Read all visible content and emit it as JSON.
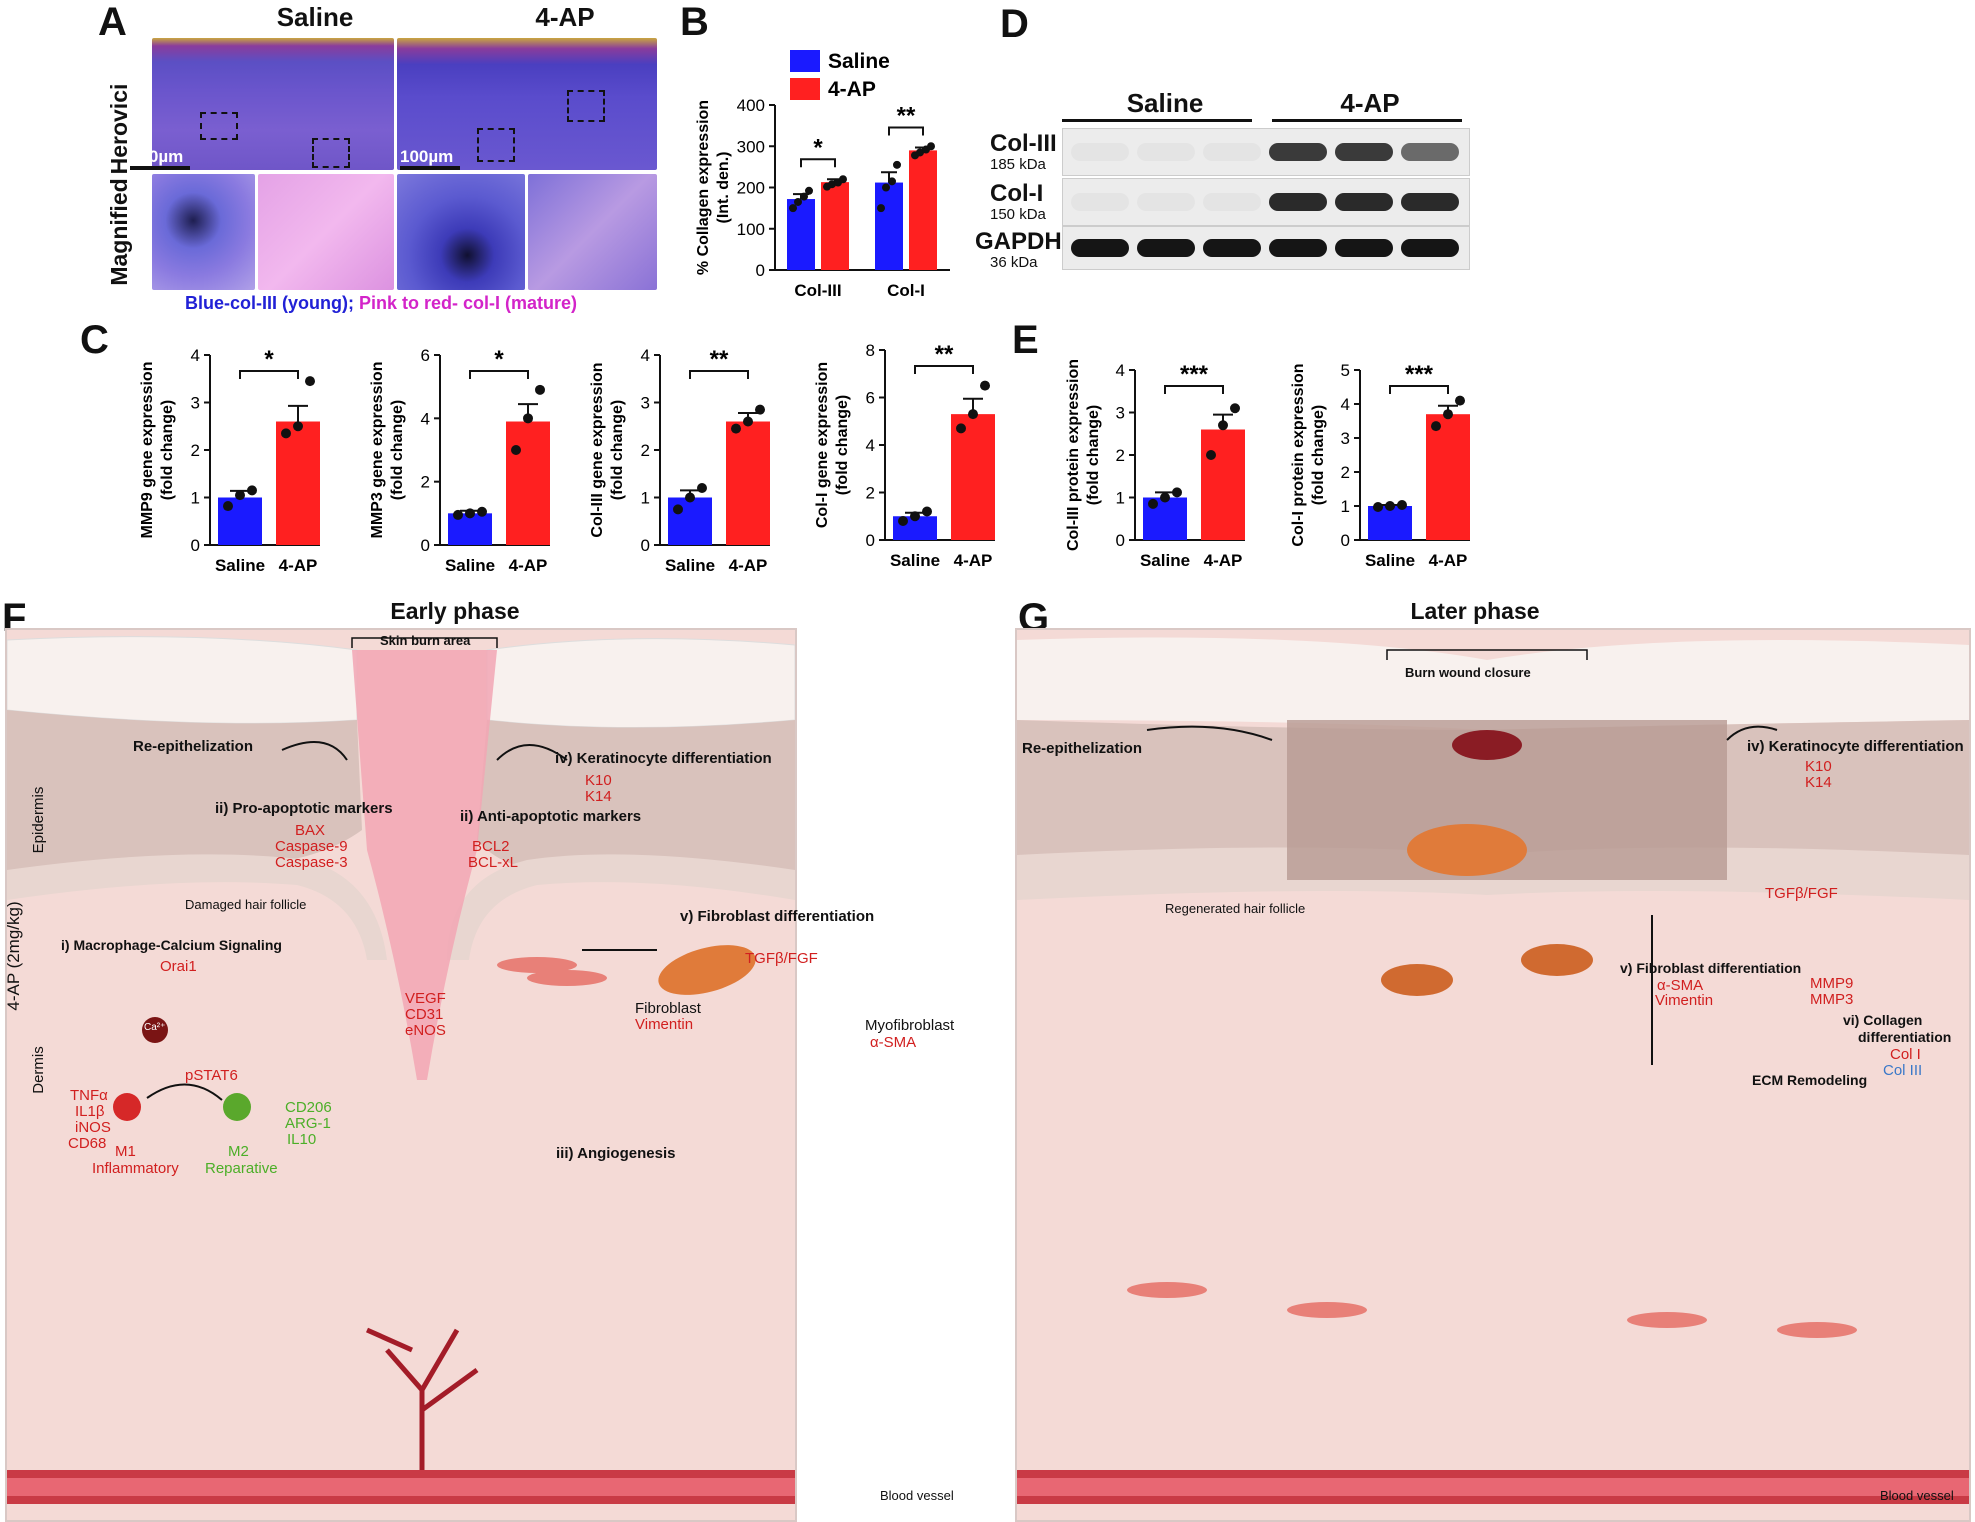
{
  "panels": {
    "A": "A",
    "B": "B",
    "C": "C",
    "D": "D",
    "E": "E",
    "F": "F",
    "G": "G"
  },
  "panel_a": {
    "col_saline": "Saline",
    "col_4ap": "4-AP",
    "row_herovici": "Herovici",
    "row_magnified": "Magnified",
    "scale_bar": "100µm",
    "caption_blue": "Blue-col-III (young);",
    "caption_pink": "Pink to red- col-I (mature)",
    "colors": {
      "blue": "#2121d6",
      "pink": "#d324c9"
    }
  },
  "panel_d": {
    "group_saline": "Saline",
    "group_4ap": "4-AP",
    "bands": [
      {
        "name": "Col-III",
        "kda": "185 kDa"
      },
      {
        "name": "Col-I",
        "kda": "150 kDa"
      },
      {
        "name": "GAPDH",
        "kda": "36 kDa"
      }
    ]
  },
  "colors": {
    "saline": "#1a1aff",
    "fourap": "#ff2020"
  },
  "chart_data": [
    {
      "id": "B",
      "type": "bar",
      "ylabel": "% Collagen expression\n(Int. den.)",
      "ylim": [
        0,
        400
      ],
      "yticks": [
        0,
        100,
        200,
        300,
        400
      ],
      "categories": [
        "Col-III",
        "Col-I"
      ],
      "legend": [
        "Saline",
        "4-AP"
      ],
      "series": [
        {
          "name": "Saline",
          "values": [
            172,
            212
          ],
          "err": [
            12,
            25
          ],
          "points": [
            [
              150,
              165,
              178,
              192
            ],
            [
              150,
              200,
              215,
              255
            ]
          ]
        },
        {
          "name": "4-AP",
          "values": [
            213,
            290
          ],
          "err": [
            7,
            7
          ],
          "points": [
            [
              202,
              208,
              212,
              220
            ],
            [
              278,
              285,
              292,
              300
            ]
          ]
        }
      ],
      "sig": [
        "*",
        "**"
      ]
    },
    {
      "id": "C1",
      "type": "bar",
      "ylabel": "MMP9 gene expression\n(fold change)",
      "ylim": [
        0,
        4
      ],
      "yticks": [
        0,
        1,
        2,
        3,
        4
      ],
      "categories": [
        "Saline",
        "4-AP"
      ],
      "values": [
        1.0,
        2.6
      ],
      "err": [
        0.14,
        0.33
      ],
      "points": [
        [
          0.82,
          1.05,
          1.15
        ],
        [
          2.35,
          2.5,
          3.45
        ]
      ],
      "sig": "*"
    },
    {
      "id": "C2",
      "type": "bar",
      "ylabel": "MMP3 gene expression\n(fold change)",
      "ylim": [
        0,
        6
      ],
      "yticks": [
        0,
        2,
        4,
        6
      ],
      "categories": [
        "Saline",
        "4-AP"
      ],
      "values": [
        1.0,
        3.9
      ],
      "err": [
        0.08,
        0.55
      ],
      "points": [
        [
          0.95,
          1.0,
          1.05
        ],
        [
          3.0,
          4.0,
          4.9
        ]
      ],
      "sig": "*"
    },
    {
      "id": "C3",
      "type": "bar",
      "ylabel": "Col-III gene expression\n(fold change)",
      "ylim": [
        0,
        4
      ],
      "yticks": [
        0,
        1,
        2,
        3,
        4
      ],
      "categories": [
        "Saline",
        "4-AP"
      ],
      "values": [
        1.0,
        2.6
      ],
      "err": [
        0.15,
        0.18
      ],
      "points": [
        [
          0.75,
          1.0,
          1.2
        ],
        [
          2.45,
          2.6,
          2.85
        ]
      ],
      "sig": "**"
    },
    {
      "id": "C4",
      "type": "bar",
      "ylabel": "Col-I gene expression\n(fold change)",
      "ylim": [
        0,
        8
      ],
      "yticks": [
        0,
        2,
        4,
        6,
        8
      ],
      "categories": [
        "Saline",
        "4-AP"
      ],
      "values": [
        1.0,
        5.3
      ],
      "err": [
        0.15,
        0.65
      ],
      "points": [
        [
          0.8,
          1.0,
          1.2
        ],
        [
          4.7,
          5.3,
          6.5
        ]
      ],
      "sig": "**"
    },
    {
      "id": "E1",
      "type": "bar",
      "ylabel": "Col-III protein expression\n(fold change)",
      "ylim": [
        0,
        4
      ],
      "yticks": [
        0,
        1,
        2,
        3,
        4
      ],
      "categories": [
        "Saline",
        "4-AP"
      ],
      "values": [
        1.0,
        2.6
      ],
      "err": [
        0.12,
        0.35
      ],
      "points": [
        [
          0.85,
          1.0,
          1.12
        ],
        [
          2.0,
          2.7,
          3.1
        ]
      ],
      "sig": "***"
    },
    {
      "id": "E2",
      "type": "bar",
      "ylabel": "Col-I protein expression\n(fold change)",
      "ylim": [
        0,
        5
      ],
      "yticks": [
        0,
        1,
        2,
        3,
        4,
        5
      ],
      "categories": [
        "Saline",
        "4-AP"
      ],
      "values": [
        1.0,
        3.7
      ],
      "err": [
        0.03,
        0.25
      ],
      "points": [
        [
          0.97,
          1.0,
          1.03
        ],
        [
          3.35,
          3.7,
          4.1
        ]
      ],
      "sig": "***"
    }
  ],
  "panel_f": {
    "title": "Early phase",
    "burn_area": "Skin burn area",
    "side_drug": "4-AP (2mg/kg)",
    "side_epidermis": "Epidermis",
    "side_dermis": "Dermis",
    "reepi": "Re-epithelization",
    "kera": "iv) Keratinocyte differentiation",
    "k10": "K10",
    "k14": "K14",
    "pro_apo": "ii) Pro-apoptotic markers",
    "bax": "BAX",
    "casp9": "Caspase-9",
    "casp3": "Caspase-3",
    "anti_apo": "ii) Anti-apoptotic markers",
    "bcl2": "BCL2",
    "bclxl": "BCL-xL",
    "damaged": "Damaged hair follicle",
    "macro": "i) Macrophage-Calcium Signaling",
    "orai": "Orai1",
    "ca": "Ca²⁺",
    "pstat": "pSTAT6",
    "tnf": "TNFα",
    "il1b": "IL1β",
    "inos": "iNOS",
    "cd68": "CD68",
    "m1": "M1",
    "m1sub": "Inflammatory",
    "m2": "M2",
    "m2sub": "Reparative",
    "cd206": "CD206",
    "arg1": "ARG-1",
    "il10": "IL10",
    "vegf": "VEGF",
    "cd31": "CD31",
    "enos": "eNOS",
    "angio": "iii) Angiogenesis",
    "fibdiff": "v) Fibroblast differentiation",
    "tgf": "TGFβ/FGF",
    "fibro": "Fibroblast",
    "vim": "Vimentin",
    "myo": "Myofibroblast",
    "asma": "α-SMA",
    "vessel": "Blood vessel",
    "up": "↑"
  },
  "panel_g": {
    "title": "Later phase",
    "closure": "Burn wound closure",
    "reepi": "Re-epithelization",
    "kera": "iv) Keratinocyte differentiation",
    "k10": "K10",
    "k14": "K14",
    "regen": "Regenerated hair follicle",
    "tgf": "TGFβ/FGF",
    "fibdiff": "v) Fibroblast differentiation",
    "asma": "α-SMA",
    "vim": "Vimentin",
    "mmp9": "MMP9",
    "mmp3": "MMP3",
    "coldiff1": "vi) Collagen",
    "coldiff2": "differentiation",
    "col1": "Col I",
    "col3": "Col III",
    "ecm": "ECM Remodeling",
    "vessel": "Blood vessel",
    "up": "↑"
  }
}
